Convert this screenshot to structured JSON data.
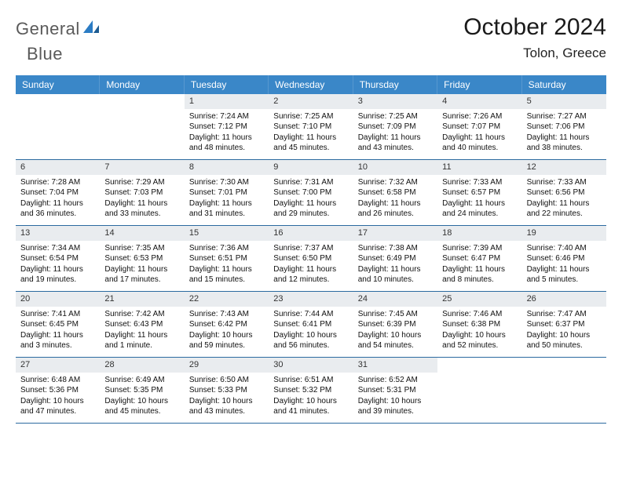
{
  "logo": {
    "text1": "General",
    "text2": "Blue"
  },
  "title": "October 2024",
  "location": "Tolon, Greece",
  "colors": {
    "header_bg": "#3a87c8",
    "header_text": "#ffffff",
    "daynum_bg": "#e9ecef",
    "row_border": "#2b6aa0",
    "logo_gray": "#5a5a5a",
    "logo_blue": "#2b7cc4",
    "page_bg": "#ffffff"
  },
  "weekdays": [
    "Sunday",
    "Monday",
    "Tuesday",
    "Wednesday",
    "Thursday",
    "Friday",
    "Saturday"
  ],
  "leading_blanks": 2,
  "days": [
    {
      "n": "1",
      "sunrise": "Sunrise: 7:24 AM",
      "sunset": "Sunset: 7:12 PM",
      "daylight": "Daylight: 11 hours and 48 minutes."
    },
    {
      "n": "2",
      "sunrise": "Sunrise: 7:25 AM",
      "sunset": "Sunset: 7:10 PM",
      "daylight": "Daylight: 11 hours and 45 minutes."
    },
    {
      "n": "3",
      "sunrise": "Sunrise: 7:25 AM",
      "sunset": "Sunset: 7:09 PM",
      "daylight": "Daylight: 11 hours and 43 minutes."
    },
    {
      "n": "4",
      "sunrise": "Sunrise: 7:26 AM",
      "sunset": "Sunset: 7:07 PM",
      "daylight": "Daylight: 11 hours and 40 minutes."
    },
    {
      "n": "5",
      "sunrise": "Sunrise: 7:27 AM",
      "sunset": "Sunset: 7:06 PM",
      "daylight": "Daylight: 11 hours and 38 minutes."
    },
    {
      "n": "6",
      "sunrise": "Sunrise: 7:28 AM",
      "sunset": "Sunset: 7:04 PM",
      "daylight": "Daylight: 11 hours and 36 minutes."
    },
    {
      "n": "7",
      "sunrise": "Sunrise: 7:29 AM",
      "sunset": "Sunset: 7:03 PM",
      "daylight": "Daylight: 11 hours and 33 minutes."
    },
    {
      "n": "8",
      "sunrise": "Sunrise: 7:30 AM",
      "sunset": "Sunset: 7:01 PM",
      "daylight": "Daylight: 11 hours and 31 minutes."
    },
    {
      "n": "9",
      "sunrise": "Sunrise: 7:31 AM",
      "sunset": "Sunset: 7:00 PM",
      "daylight": "Daylight: 11 hours and 29 minutes."
    },
    {
      "n": "10",
      "sunrise": "Sunrise: 7:32 AM",
      "sunset": "Sunset: 6:58 PM",
      "daylight": "Daylight: 11 hours and 26 minutes."
    },
    {
      "n": "11",
      "sunrise": "Sunrise: 7:33 AM",
      "sunset": "Sunset: 6:57 PM",
      "daylight": "Daylight: 11 hours and 24 minutes."
    },
    {
      "n": "12",
      "sunrise": "Sunrise: 7:33 AM",
      "sunset": "Sunset: 6:56 PM",
      "daylight": "Daylight: 11 hours and 22 minutes."
    },
    {
      "n": "13",
      "sunrise": "Sunrise: 7:34 AM",
      "sunset": "Sunset: 6:54 PM",
      "daylight": "Daylight: 11 hours and 19 minutes."
    },
    {
      "n": "14",
      "sunrise": "Sunrise: 7:35 AM",
      "sunset": "Sunset: 6:53 PM",
      "daylight": "Daylight: 11 hours and 17 minutes."
    },
    {
      "n": "15",
      "sunrise": "Sunrise: 7:36 AM",
      "sunset": "Sunset: 6:51 PM",
      "daylight": "Daylight: 11 hours and 15 minutes."
    },
    {
      "n": "16",
      "sunrise": "Sunrise: 7:37 AM",
      "sunset": "Sunset: 6:50 PM",
      "daylight": "Daylight: 11 hours and 12 minutes."
    },
    {
      "n": "17",
      "sunrise": "Sunrise: 7:38 AM",
      "sunset": "Sunset: 6:49 PM",
      "daylight": "Daylight: 11 hours and 10 minutes."
    },
    {
      "n": "18",
      "sunrise": "Sunrise: 7:39 AM",
      "sunset": "Sunset: 6:47 PM",
      "daylight": "Daylight: 11 hours and 8 minutes."
    },
    {
      "n": "19",
      "sunrise": "Sunrise: 7:40 AM",
      "sunset": "Sunset: 6:46 PM",
      "daylight": "Daylight: 11 hours and 5 minutes."
    },
    {
      "n": "20",
      "sunrise": "Sunrise: 7:41 AM",
      "sunset": "Sunset: 6:45 PM",
      "daylight": "Daylight: 11 hours and 3 minutes."
    },
    {
      "n": "21",
      "sunrise": "Sunrise: 7:42 AM",
      "sunset": "Sunset: 6:43 PM",
      "daylight": "Daylight: 11 hours and 1 minute."
    },
    {
      "n": "22",
      "sunrise": "Sunrise: 7:43 AM",
      "sunset": "Sunset: 6:42 PM",
      "daylight": "Daylight: 10 hours and 59 minutes."
    },
    {
      "n": "23",
      "sunrise": "Sunrise: 7:44 AM",
      "sunset": "Sunset: 6:41 PM",
      "daylight": "Daylight: 10 hours and 56 minutes."
    },
    {
      "n": "24",
      "sunrise": "Sunrise: 7:45 AM",
      "sunset": "Sunset: 6:39 PM",
      "daylight": "Daylight: 10 hours and 54 minutes."
    },
    {
      "n": "25",
      "sunrise": "Sunrise: 7:46 AM",
      "sunset": "Sunset: 6:38 PM",
      "daylight": "Daylight: 10 hours and 52 minutes."
    },
    {
      "n": "26",
      "sunrise": "Sunrise: 7:47 AM",
      "sunset": "Sunset: 6:37 PM",
      "daylight": "Daylight: 10 hours and 50 minutes."
    },
    {
      "n": "27",
      "sunrise": "Sunrise: 6:48 AM",
      "sunset": "Sunset: 5:36 PM",
      "daylight": "Daylight: 10 hours and 47 minutes."
    },
    {
      "n": "28",
      "sunrise": "Sunrise: 6:49 AM",
      "sunset": "Sunset: 5:35 PM",
      "daylight": "Daylight: 10 hours and 45 minutes."
    },
    {
      "n": "29",
      "sunrise": "Sunrise: 6:50 AM",
      "sunset": "Sunset: 5:33 PM",
      "daylight": "Daylight: 10 hours and 43 minutes."
    },
    {
      "n": "30",
      "sunrise": "Sunrise: 6:51 AM",
      "sunset": "Sunset: 5:32 PM",
      "daylight": "Daylight: 10 hours and 41 minutes."
    },
    {
      "n": "31",
      "sunrise": "Sunrise: 6:52 AM",
      "sunset": "Sunset: 5:31 PM",
      "daylight": "Daylight: 10 hours and 39 minutes."
    }
  ]
}
